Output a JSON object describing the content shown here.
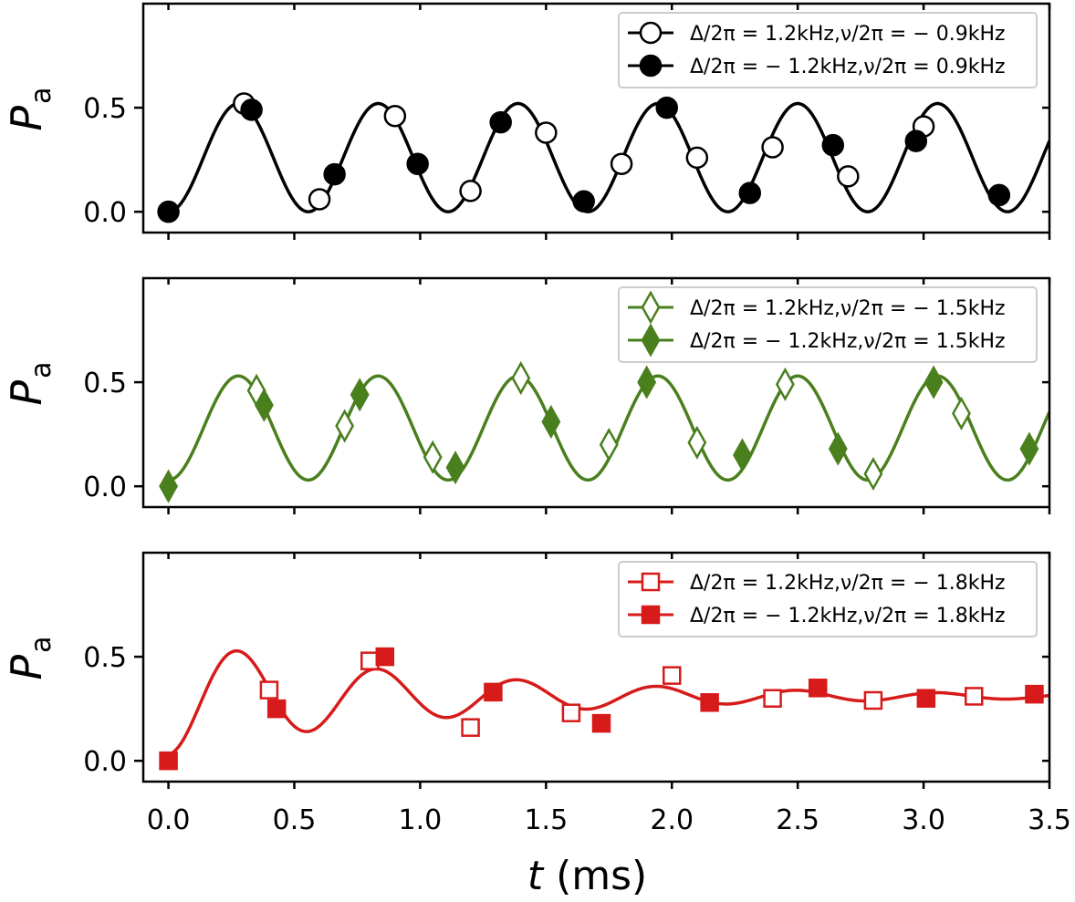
{
  "chart_data": [
    {
      "type": "line",
      "panel": "top",
      "color": "#000000",
      "marker": "circle",
      "ylabel": "P",
      "ylabel_sub": "a",
      "xlim": [
        -0.1,
        3.5
      ],
      "ylim": [
        -0.1,
        1.0
      ],
      "yticks": [
        0.0,
        0.5
      ],
      "ytick_labels": [
        "0.0",
        "0.5"
      ],
      "fit_params": {
        "offset": 0.26,
        "amp": 0.26,
        "freq_khz": 1.8,
        "decay_ms": 0
      },
      "series": [
        {
          "name": "Δ/2π = 1.2kHz,ν/2π = − 0.9kHz",
          "filled": false,
          "x": [
            0.3,
            0.6,
            0.9,
            1.2,
            1.5,
            1.8,
            2.1,
            2.4,
            2.7,
            3.0
          ],
          "y": [
            0.52,
            0.06,
            0.46,
            0.1,
            0.38,
            0.23,
            0.26,
            0.31,
            0.17,
            0.41
          ]
        },
        {
          "name": "Δ/2π = − 1.2kHz,ν/2π = 0.9kHz",
          "filled": true,
          "x": [
            0.0,
            0.33,
            0.66,
            0.99,
            1.32,
            1.65,
            1.98,
            2.31,
            2.64,
            2.97,
            3.3
          ],
          "y": [
            0.0,
            0.49,
            0.18,
            0.23,
            0.43,
            0.05,
            0.5,
            0.09,
            0.32,
            0.34,
            0.08
          ]
        }
      ]
    },
    {
      "type": "line",
      "panel": "middle",
      "color": "#4a7f1e",
      "marker": "diamond",
      "ylabel": "P",
      "ylabel_sub": "a",
      "xlim": [
        -0.1,
        3.5
      ],
      "ylim": [
        -0.1,
        1.0
      ],
      "yticks": [
        0.0,
        0.5
      ],
      "ytick_labels": [
        "0.0",
        "0.5"
      ],
      "fit_params": {
        "offset": 0.28,
        "amp": 0.25,
        "freq_khz": 1.8,
        "decay_ms": 0
      },
      "series": [
        {
          "name": "Δ/2π = 1.2kHz,ν/2π = − 1.5kHz",
          "filled": false,
          "x": [
            0.35,
            0.7,
            1.05,
            1.4,
            1.75,
            2.1,
            2.45,
            2.8,
            3.15
          ],
          "y": [
            0.46,
            0.29,
            0.14,
            0.52,
            0.2,
            0.21,
            0.49,
            0.06,
            0.35
          ]
        },
        {
          "name": "Δ/2π = − 1.2kHz,ν/2π = 1.5kHz",
          "filled": true,
          "x": [
            0.0,
            0.38,
            0.76,
            1.14,
            1.52,
            1.9,
            2.28,
            2.66,
            3.04,
            3.42
          ],
          "y": [
            0.0,
            0.39,
            0.44,
            0.09,
            0.31,
            0.5,
            0.15,
            0.18,
            0.5,
            0.18
          ]
        }
      ]
    },
    {
      "type": "line",
      "panel": "bottom",
      "color": "#d71a1a",
      "marker": "square",
      "ylabel": "P",
      "ylabel_sub": "a",
      "xlabel": "t",
      "xlabel_unit": " (ms)",
      "xlim": [
        -0.1,
        3.5
      ],
      "ylim": [
        -0.1,
        1.0
      ],
      "yticks": [
        0.0,
        0.5
      ],
      "ytick_labels": [
        "0.0",
        "0.5"
      ],
      "xticks": [
        0.0,
        0.5,
        1.0,
        1.5,
        2.0,
        2.5,
        3.0,
        3.5
      ],
      "xtick_labels": [
        "0.0",
        "0.5",
        "1.0",
        "1.5",
        "2.0",
        "2.5",
        "3.0",
        "3.5"
      ],
      "fit_params": {
        "offset": 0.31,
        "amp": 0.28,
        "freq_khz": 1.8,
        "decay_ms": 1.1
      },
      "series": [
        {
          "name": "Δ/2π = 1.2kHz,ν/2π = − 1.8kHz",
          "filled": false,
          "x": [
            0.4,
            0.8,
            1.2,
            1.6,
            2.0,
            2.4,
            2.8,
            3.2
          ],
          "y": [
            0.34,
            0.48,
            0.16,
            0.23,
            0.41,
            0.3,
            0.29,
            0.31
          ]
        },
        {
          "name": "Δ/2π = − 1.2kHz,ν/2π = 1.8kHz",
          "filled": true,
          "x": [
            0.0,
            0.43,
            0.86,
            1.29,
            1.72,
            2.15,
            2.58,
            3.01,
            3.44
          ],
          "y": [
            0.0,
            0.25,
            0.5,
            0.33,
            0.18,
            0.28,
            0.35,
            0.3,
            0.32
          ]
        }
      ]
    }
  ]
}
